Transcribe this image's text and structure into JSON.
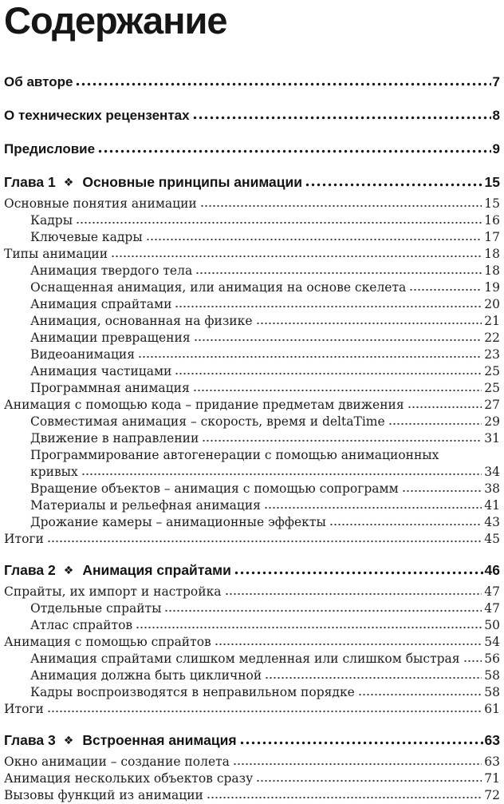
{
  "title": "Содержание",
  "front_matter": [
    {
      "label": "Об авторе",
      "page": "7"
    },
    {
      "label": "О технических рецензентах",
      "page": "8"
    },
    {
      "label": "Предисловие",
      "page": "9"
    }
  ],
  "chapter_marker_icon": "❖",
  "chapters": [
    {
      "label": "Глава 1",
      "marker": "❖",
      "name": "Основные принципы анимации",
      "page": "15",
      "entries": [
        {
          "text": "Основные понятия анимации",
          "page": "15",
          "indent": 0
        },
        {
          "text": "Кадры",
          "page": "16",
          "indent": 1
        },
        {
          "text": "Ключевые кадры",
          "page": "17",
          "indent": 1
        },
        {
          "text": "Типы анимации",
          "page": "18",
          "indent": 0
        },
        {
          "text": "Анимация твердого тела",
          "page": "18",
          "indent": 1
        },
        {
          "text": "Оснащенная анимация, или анимация на основе скелета",
          "page": "19",
          "indent": 1
        },
        {
          "text": "Анимация спрайтами",
          "page": "20",
          "indent": 1
        },
        {
          "text": "Анимация, основанная на физике",
          "page": "21",
          "indent": 1
        },
        {
          "text": "Анимации превращения",
          "page": "22",
          "indent": 1
        },
        {
          "text": "Видеоанимация",
          "page": "23",
          "indent": 1
        },
        {
          "text": "Анимация частицами",
          "page": "25",
          "indent": 1
        },
        {
          "text": "Программная анимация",
          "page": "25",
          "indent": 1
        },
        {
          "text": "Анимация с помощью кода – придание предметам движения",
          "page": "27",
          "indent": 0
        },
        {
          "text": "Совместимая анимация – скорость, время и deltaTime",
          "page": "29",
          "indent": 1
        },
        {
          "text": "Движение в направлении",
          "page": "31",
          "indent": 1
        },
        {
          "text": "Программирование автогенерации с помощью анимационных",
          "page": null,
          "indent": 1
        },
        {
          "text": "кривых",
          "page": "34",
          "indent": 1
        },
        {
          "text": "Вращение объектов – анимация с помощью сопрограмм",
          "page": "38",
          "indent": 1
        },
        {
          "text": "Материалы и рельефная анимация",
          "page": "41",
          "indent": 1
        },
        {
          "text": "Дрожание камеры – анимационные эффекты",
          "page": "43",
          "indent": 1
        },
        {
          "text": "Итоги",
          "page": "45",
          "indent": 0
        }
      ]
    },
    {
      "label": "Глава 2",
      "marker": "❖",
      "name": "Анимация спрайтами",
      "page": "46",
      "entries": [
        {
          "text": "Спрайты, их импорт и настройка",
          "page": "47",
          "indent": 0
        },
        {
          "text": "Отдельные спрайты",
          "page": "47",
          "indent": 1
        },
        {
          "text": "Атлас спрайтов",
          "page": "50",
          "indent": 1
        },
        {
          "text": "Анимация с помощью спрайтов",
          "page": "54",
          "indent": 0
        },
        {
          "text": "Анимация спрайтами слишком медленная или слишком быстрая",
          "page": "56",
          "indent": 1
        },
        {
          "text": "Анимация должна быть цикличной",
          "page": "58",
          "indent": 1
        },
        {
          "text": "Кадры воспроизводятся в неправильном порядке",
          "page": "58",
          "indent": 1
        },
        {
          "text": "Итоги",
          "page": "61",
          "indent": 0
        }
      ]
    },
    {
      "label": "Глава 3",
      "marker": "❖",
      "name": "Встроенная анимация",
      "page": "63",
      "entries": [
        {
          "text": "Окно анимации – создание полета",
          "page": "63",
          "indent": 0
        },
        {
          "text": "Анимация нескольких объектов сразу",
          "page": "71",
          "indent": 0
        },
        {
          "text": "Вызовы функций из анимации",
          "page": "72",
          "indent": 0
        }
      ]
    }
  ]
}
